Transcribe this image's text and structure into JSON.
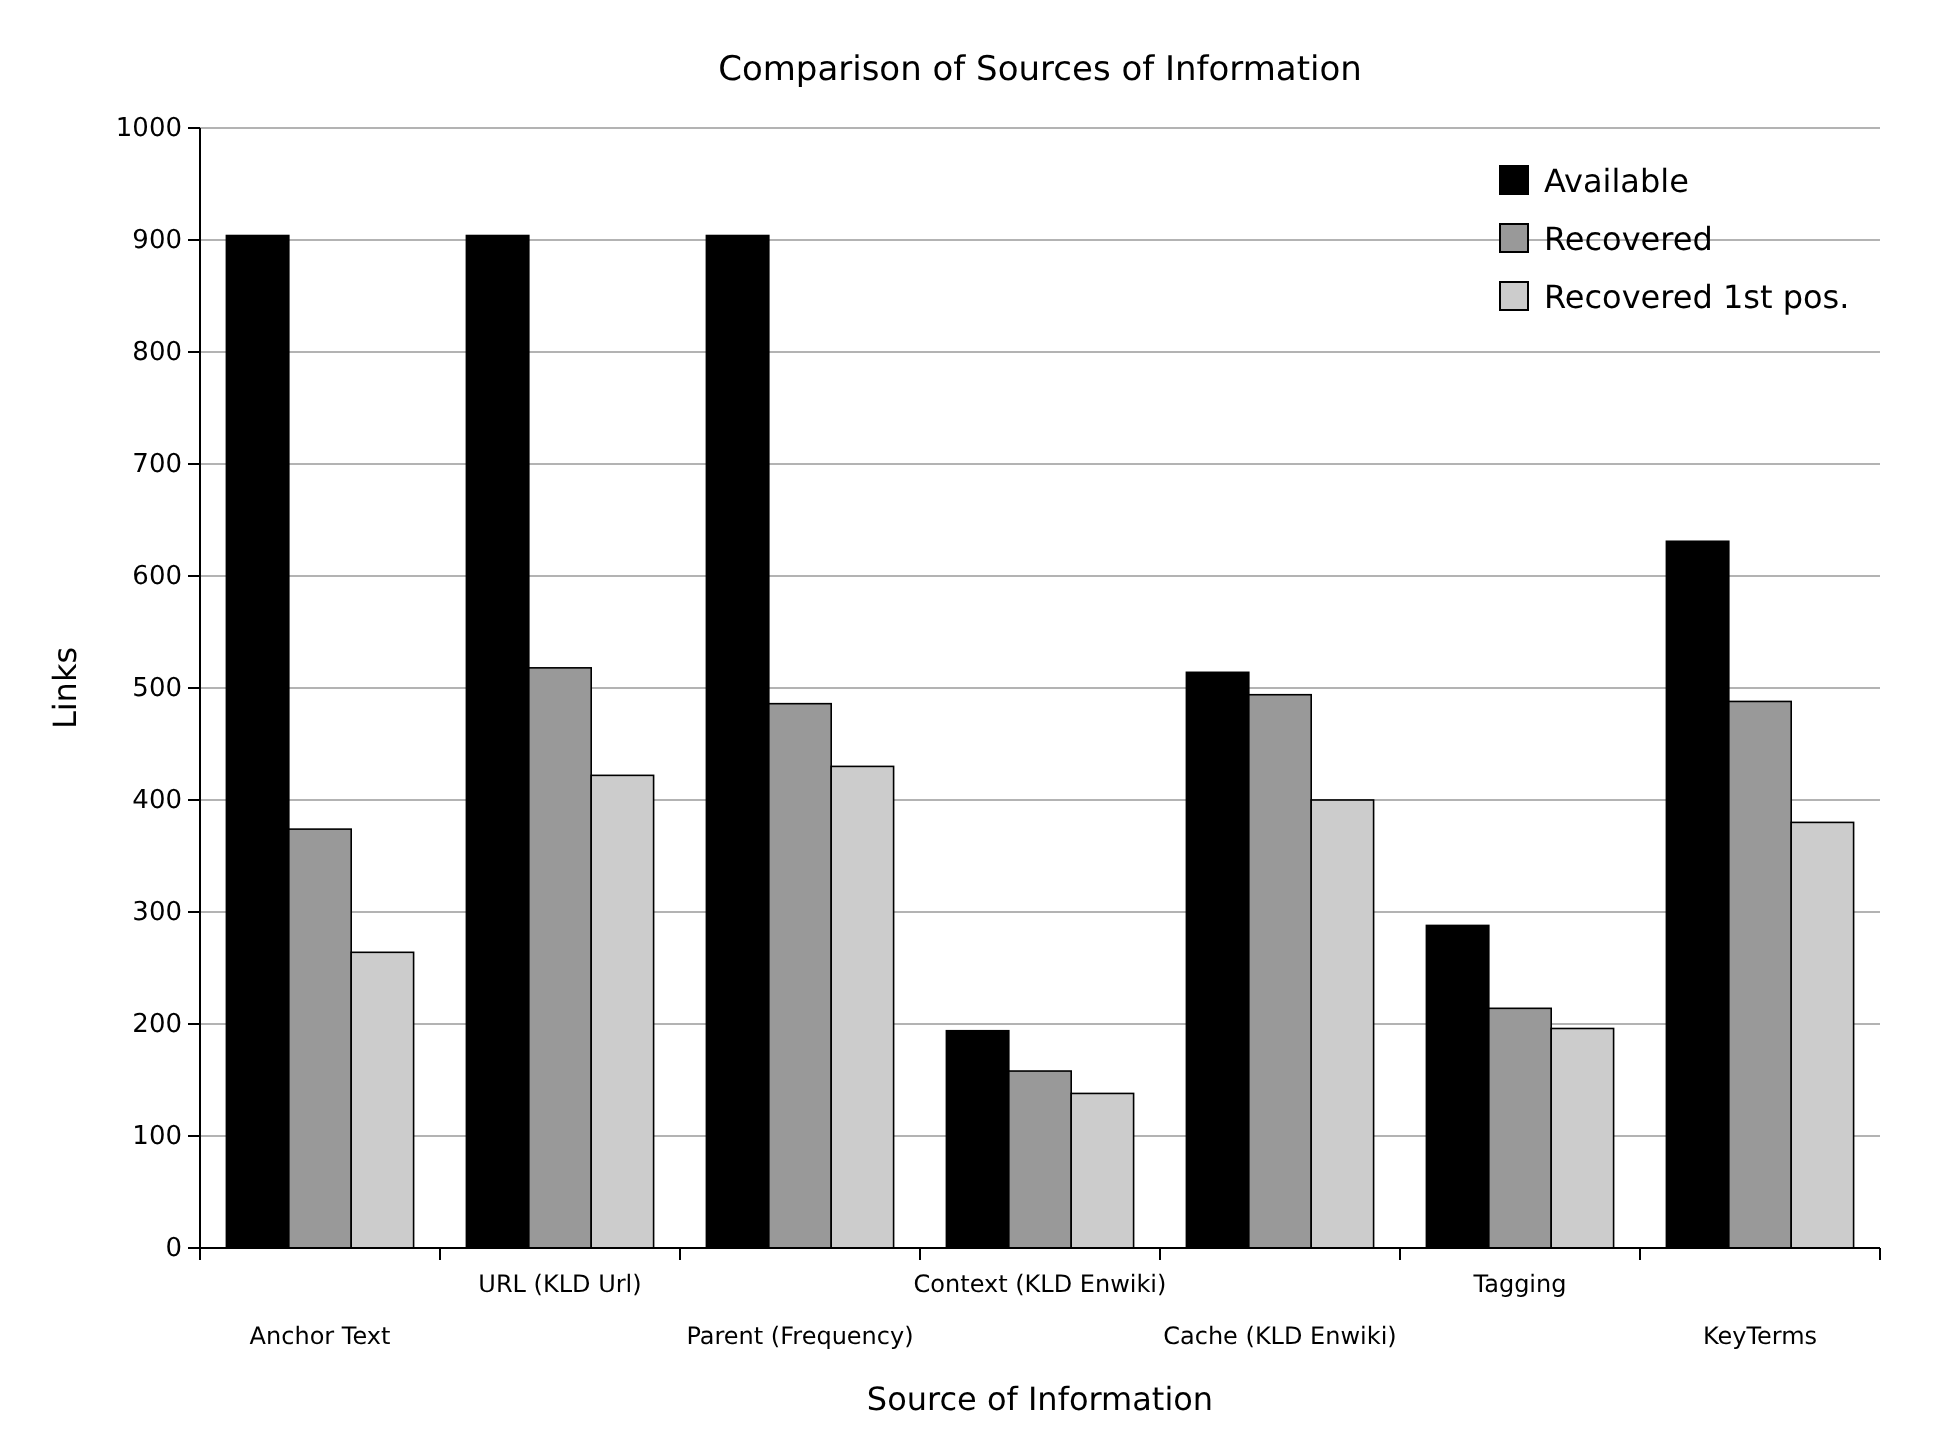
{
  "chart_data": {
    "type": "bar",
    "title": "Comparison of Sources of Information",
    "xlabel": "Source of Information",
    "ylabel": "Links",
    "categories": [
      "Anchor Text",
      "URL (KLD Url)",
      "Parent (Frequency)",
      "Context (KLD Enwiki)",
      "Cache (KLD Enwiki)",
      "Tagging",
      "KeyTerms"
    ],
    "series": [
      {
        "name": "Available",
        "color": "#000000",
        "values": [
          904,
          904,
          904,
          194,
          514,
          288,
          631
        ]
      },
      {
        "name": "Recovered",
        "color": "#999999",
        "values": [
          374,
          518,
          486,
          158,
          494,
          214,
          488
        ]
      },
      {
        "name": "Recovered 1st pos.",
        "color": "#cccccc",
        "values": [
          264,
          422,
          430,
          138,
          400,
          196,
          380
        ]
      }
    ],
    "ylim": [
      0,
      1000
    ],
    "yticks": [
      0,
      100,
      200,
      300,
      400,
      500,
      600,
      700,
      800,
      900,
      1000
    ],
    "grid": "y",
    "legend": "top right"
  }
}
